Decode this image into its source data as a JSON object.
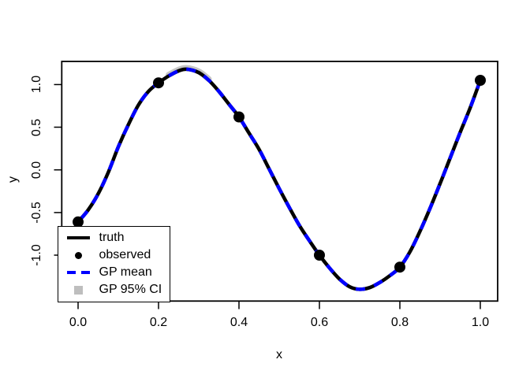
{
  "axes": {
    "xlabel": "x",
    "ylabel": "y",
    "x_tick_labels": [
      "0.0",
      "0.2",
      "0.4",
      "0.6",
      "0.8",
      "1.0"
    ],
    "y_tick_labels": [
      "-1.0",
      "-0.5",
      "0.0",
      "0.5",
      "1.0"
    ]
  },
  "legend": {
    "items": [
      {
        "key_type": "solid-line",
        "color": "#000000",
        "label": "truth"
      },
      {
        "key_type": "point",
        "color": "#000000",
        "label": "observed"
      },
      {
        "key_type": "dashed-line",
        "color": "#0000FF",
        "label": "GP mean"
      },
      {
        "key_type": "square",
        "color": "#BEBEBE",
        "label": "GP 95% CI"
      }
    ]
  },
  "chart_data": {
    "type": "line",
    "title": "",
    "xlabel": "x",
    "ylabel": "y",
    "xlim": [
      -0.04,
      1.04
    ],
    "ylim": [
      -1.54,
      1.27
    ],
    "x_ticks": [
      0.0,
      0.2,
      0.4,
      0.6,
      0.8,
      1.0
    ],
    "y_ticks": [
      -1.0,
      -0.5,
      0.0,
      0.5,
      1.0
    ],
    "grid": false,
    "legend_position": "bottomleft",
    "series": [
      {
        "name": "truth",
        "type": "line",
        "color": "#000000",
        "linestyle": "solid",
        "linewidth": 4.5,
        "x": [
          0,
          0.025,
          0.05,
          0.075,
          0.1,
          0.125,
          0.15,
          0.175,
          0.2,
          0.225,
          0.25,
          0.27,
          0.3,
          0.325,
          0.35,
          0.375,
          0.4,
          0.425,
          0.45,
          0.475,
          0.5,
          0.525,
          0.55,
          0.575,
          0.6,
          0.625,
          0.65,
          0.675,
          0.7,
          0.725,
          0.75,
          0.775,
          0.8,
          0.825,
          0.85,
          0.875,
          0.9,
          0.925,
          0.95,
          0.975,
          1
        ],
        "y": [
          -0.61,
          -0.47,
          -0.28,
          -0.03,
          0.27,
          0.53,
          0.76,
          0.92,
          1.02,
          1.1,
          1.16,
          1.18,
          1.14,
          1.05,
          0.92,
          0.77,
          0.62,
          0.43,
          0.24,
          0.01,
          -0.22,
          -0.44,
          -0.65,
          -0.83,
          -1,
          -1.15,
          -1.28,
          -1.37,
          -1.4,
          -1.38,
          -1.32,
          -1.24,
          -1.14,
          -0.96,
          -0.72,
          -0.45,
          -0.16,
          0.14,
          0.44,
          0.73,
          1.05
        ]
      },
      {
        "name": "GP mean",
        "type": "line",
        "color": "#0000FF",
        "linestyle": "dashed",
        "linewidth": 4.5,
        "coincides_with": "truth",
        "dash": [
          12,
          12
        ]
      },
      {
        "name": "observed",
        "type": "scatter",
        "color": "#000000",
        "marker": "filled-circle",
        "marker_radius_px": 7,
        "x": [
          0,
          0.2,
          0.4,
          0.6,
          0.8,
          1.0
        ],
        "y": [
          -0.61,
          1.02,
          0.62,
          -1.0,
          -1.14,
          1.05
        ]
      },
      {
        "name": "GP 95% CI",
        "type": "band",
        "color": "#C6C6C6",
        "note": "band nearly coincides with the mean; only a thin sliver is visible above the curve near the peak",
        "visible_x_range": [
          0.205,
          0.345
        ]
      }
    ]
  }
}
